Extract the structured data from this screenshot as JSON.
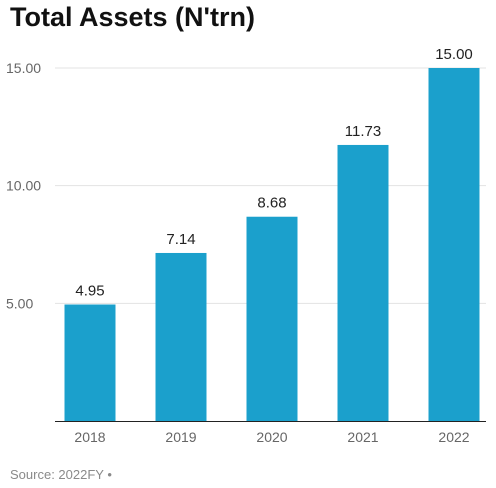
{
  "chart_data": {
    "type": "bar",
    "title": "Total Assets (N'trn)",
    "xlabel": "",
    "ylabel": "",
    "categories": [
      "2018",
      "2019",
      "2020",
      "2021",
      "2022"
    ],
    "values": [
      4.95,
      7.14,
      8.68,
      11.73,
      15.0
    ],
    "value_labels": [
      "4.95",
      "7.14",
      "8.68",
      "11.73",
      "15.00"
    ],
    "y_ticks": [
      5,
      10,
      15
    ],
    "y_tick_labels": [
      "5.00",
      "10.00",
      "15.00"
    ],
    "ylim": [
      0,
      15
    ],
    "grid": true,
    "legend": "none",
    "bar_color": "#1ba0cc",
    "source": "Source: 2022FY •"
  }
}
